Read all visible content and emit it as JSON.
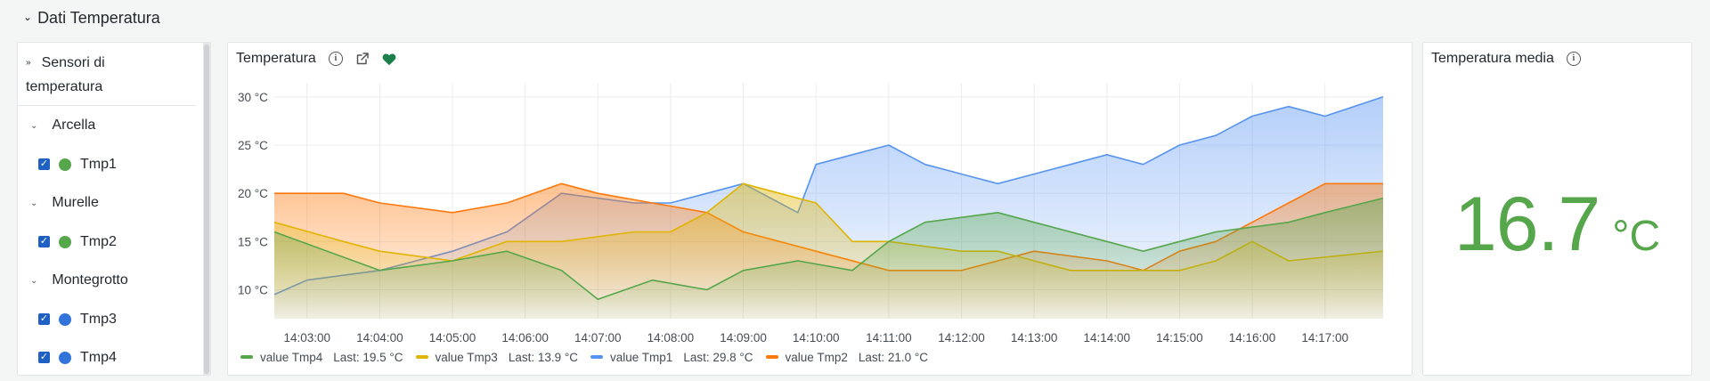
{
  "row": {
    "title": "Dati Temperatura"
  },
  "sidebar": {
    "title": "Sensori di temperatura",
    "groups": [
      {
        "name": "Arcella",
        "sensors": [
          {
            "name": "Tmp1",
            "color": "#56a64b",
            "checked": true
          }
        ]
      },
      {
        "name": "Murelle",
        "sensors": [
          {
            "name": "Tmp2",
            "color": "#56a64b",
            "checked": true
          }
        ]
      },
      {
        "name": "Montegrotto",
        "sensors": [
          {
            "name": "Tmp3",
            "color": "#3274d9",
            "checked": true
          },
          {
            "name": "Tmp4",
            "color": "#3274d9",
            "checked": true
          }
        ]
      }
    ]
  },
  "chart_panel": {
    "title": "Temperatura",
    "icons": [
      "info-icon",
      "external-link-icon",
      "heart-icon"
    ],
    "heart_color": "#1a7f4b"
  },
  "stat_panel": {
    "title": "Temperatura media",
    "value": "16.7",
    "unit": "°C",
    "value_color": "#56a64b"
  },
  "chart_data": {
    "type": "area",
    "x_ticks": [
      "14:03:00",
      "14:04:00",
      "14:05:00",
      "14:06:00",
      "14:07:00",
      "14:08:00",
      "14:09:00",
      "14:10:00",
      "14:11:00",
      "14:12:00",
      "14:13:00",
      "14:14:00",
      "14:15:00",
      "14:16:00",
      "14:17:00"
    ],
    "x_range": [
      "14:02:33",
      "14:17:48"
    ],
    "y_ticks": [
      "10 °C",
      "15 °C",
      "20 °C",
      "25 °C",
      "30 °C"
    ],
    "ylim": [
      7,
      31
    ],
    "grid": true,
    "legend_position": "bottom-left",
    "series": [
      {
        "name": "value Tmp4",
        "color": "#56a64b",
        "last": "19.5 °C",
        "t": [
          "14:02:33",
          "14:04:00",
          "14:05:00",
          "14:05:45",
          "14:06:30",
          "14:07:00",
          "14:07:45",
          "14:08:30",
          "14:09:00",
          "14:09:45",
          "14:10:30",
          "14:11:00",
          "14:11:30",
          "14:12:30",
          "14:13:00",
          "14:14:00",
          "14:14:30",
          "14:15:00",
          "14:15:30",
          "14:16:30",
          "14:17:00",
          "14:17:48"
        ],
        "values": [
          16,
          12,
          13,
          14,
          12,
          9,
          11,
          10,
          12,
          13,
          12,
          15,
          17,
          18,
          17,
          15,
          14,
          15,
          16,
          17,
          18,
          19.5
        ]
      },
      {
        "name": "value Tmp3",
        "color": "#e0b400",
        "last": "13.9 °C",
        "t": [
          "14:02:33",
          "14:03:30",
          "14:04:00",
          "14:05:00",
          "14:05:45",
          "14:06:30",
          "14:07:30",
          "14:08:00",
          "14:08:30",
          "14:09:00",
          "14:09:30",
          "14:10:00",
          "14:10:30",
          "14:11:00",
          "14:12:00",
          "14:12:30",
          "14:13:30",
          "14:14:00",
          "14:15:00",
          "14:15:30",
          "14:16:00",
          "14:16:30",
          "14:17:48"
        ],
        "values": [
          17,
          15,
          14,
          13,
          15,
          15,
          16,
          16,
          18,
          21,
          20,
          19,
          15,
          15,
          14,
          14,
          12,
          12,
          12,
          13,
          15,
          13,
          14
        ]
      },
      {
        "name": "value Tmp1",
        "color": "#5794f2",
        "last": "29.8 °C",
        "t": [
          "14:02:33",
          "14:03:00",
          "14:04:00",
          "14:05:00",
          "14:05:45",
          "14:06:30",
          "14:07:30",
          "14:08:00",
          "14:08:30",
          "14:09:00",
          "14:09:30",
          "14:09:45",
          "14:10:00",
          "14:10:30",
          "14:11:00",
          "14:11:30",
          "14:12:00",
          "14:12:30",
          "14:13:00",
          "14:13:30",
          "14:14:00",
          "14:14:30",
          "14:15:00",
          "14:15:30",
          "14:16:00",
          "14:16:30",
          "14:17:00",
          "14:17:48"
        ],
        "values": [
          9.5,
          11,
          12,
          14,
          16,
          20,
          19,
          19,
          20,
          21,
          19,
          18,
          23,
          24,
          25,
          23,
          22,
          21,
          22,
          23,
          24,
          23,
          25,
          26,
          28,
          29,
          28,
          30
        ]
      },
      {
        "name": "value Tmp2",
        "color": "#ff780a",
        "last": "21.0 °C",
        "t": [
          "14:02:33",
          "14:03:30",
          "14:04:00",
          "14:05:00",
          "14:05:45",
          "14:06:30",
          "14:07:00",
          "14:07:45",
          "14:08:30",
          "14:09:00",
          "14:09:30",
          "14:10:00",
          "14:11:00",
          "14:12:00",
          "14:12:30",
          "14:13:00",
          "14:14:00",
          "14:14:30",
          "14:15:00",
          "14:15:30",
          "14:16:00",
          "14:16:30",
          "14:17:00",
          "14:17:48"
        ],
        "values": [
          20,
          20,
          19,
          18,
          19,
          21,
          20,
          19,
          18,
          16,
          15,
          14,
          12,
          12,
          13,
          14,
          13,
          12,
          14,
          15,
          17,
          19,
          21,
          21
        ]
      }
    ]
  }
}
